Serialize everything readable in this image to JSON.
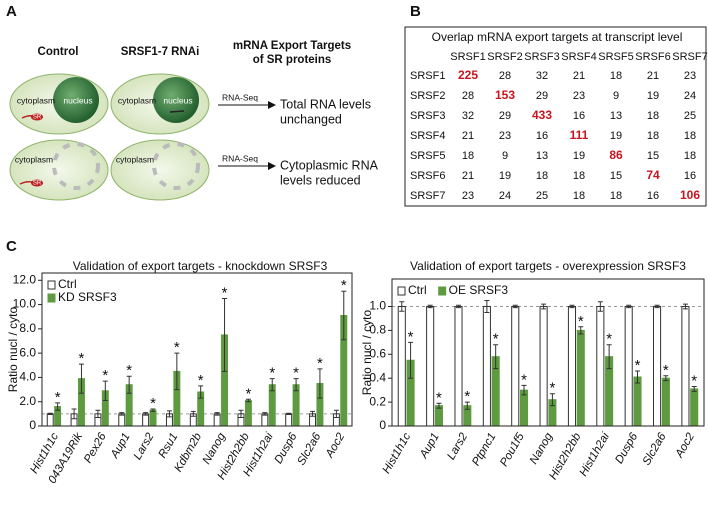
{
  "panel_labels": [
    "A",
    "B",
    "C"
  ],
  "diagram": {
    "headers": [
      "Control",
      "SRSF1-7 RNAi"
    ],
    "result_header": [
      "mRNA Export Targets",
      "of SR proteins"
    ],
    "cytoplasm": "cytoplasm",
    "nucleus": "nucleus",
    "sr": "SR",
    "method": "RNA-Seq",
    "outcomes": [
      [
        "Total RNA levels",
        "unchanged"
      ],
      [
        "Cytoplasmic RNA",
        "levels reduced"
      ]
    ]
  },
  "table": {
    "title": "Overlap mRNA export targets at transcript level",
    "columns": [
      "SRSF1",
      "SRSF2",
      "SRSF3",
      "SRSF4",
      "SRSF5",
      "SRSF6",
      "SRSF7"
    ],
    "rows": [
      {
        "label": "SRSF1",
        "cells": [
          225,
          28,
          32,
          21,
          18,
          21,
          23
        ]
      },
      {
        "label": "SRSF2",
        "cells": [
          28,
          153,
          29,
          23,
          9,
          19,
          24
        ]
      },
      {
        "label": "SRSF3",
        "cells": [
          32,
          29,
          433,
          16,
          13,
          18,
          25
        ]
      },
      {
        "label": "SRSF4",
        "cells": [
          21,
          23,
          16,
          111,
          19,
          18,
          18
        ]
      },
      {
        "label": "SRSF5",
        "cells": [
          18,
          9,
          13,
          19,
          86,
          15,
          18
        ]
      },
      {
        "label": "SRSF6",
        "cells": [
          21,
          19,
          18,
          18,
          15,
          74,
          16
        ]
      },
      {
        "label": "SRSF7",
        "cells": [
          23,
          24,
          25,
          18,
          18,
          16,
          106
        ]
      }
    ]
  },
  "chart_data": [
    {
      "type": "bar",
      "title": "Validation of export targets - knockdown SRSF3",
      "y_label": "Ratio nucl / cyto",
      "categories": [
        "Hist1h1c",
        "043A19Rik",
        "Pex26",
        "Aup1",
        "Lars2",
        "Rsu1",
        "Kdbm2b",
        "Nanog",
        "Hist2h2bb",
        "Hist1h2ai",
        "Dusp6",
        "Slc2a6",
        "Aoc2"
      ],
      "series": [
        {
          "name": "Ctrl",
          "color": "#ffffff",
          "values": [
            1,
            1,
            1,
            1,
            1,
            1,
            1,
            1,
            1,
            1,
            1,
            1,
            1
          ],
          "errors": [
            0.05,
            0.4,
            0.3,
            0.1,
            0.1,
            0.25,
            0.2,
            0.1,
            0.3,
            0.1,
            0.05,
            0.2,
            0.3
          ]
        },
        {
          "name": "KD SRSF3",
          "color": "#5e9a40",
          "values": [
            1.6,
            3.9,
            2.9,
            3.4,
            1.3,
            4.5,
            2.8,
            7.5,
            2.1,
            3.4,
            3.4,
            3.5,
            9.1
          ],
          "errors": [
            0.3,
            1.2,
            0.8,
            0.7,
            0.1,
            1.5,
            0.5,
            3.0,
            0.1,
            0.5,
            0.5,
            1.2,
            2.0
          ],
          "annotation": "*"
        }
      ],
      "ylim": [
        0,
        12.6
      ],
      "yticks": [
        0,
        {
          "value": 2,
          "label": "2.0"
        },
        {
          "value": 4,
          "label": "4.0"
        },
        {
          "value": 6,
          "label": "6.0"
        },
        {
          "value": 8,
          "label": "8.0"
        },
        {
          "value": 10,
          "label": "10.0"
        },
        {
          "value": 12,
          "label": "12.0"
        }
      ],
      "reference_line": 1,
      "legend": "top-left",
      "legend_direction": "vertical"
    },
    {
      "type": "bar",
      "title": "Validation of export targets - overexpression SRSF3",
      "y_label": "Ratio nucl / cyto",
      "categories": [
        "Hist1h1c",
        "Aup1",
        "Lars2",
        "Ptpnc1",
        "Pou1f5",
        "Nanog",
        "Hist2h2bb",
        "Hist1h2ai",
        "Dusp6",
        "Slc2a6",
        "Aoc2"
      ],
      "series": [
        {
          "name": "Ctrl",
          "color": "#ffffff",
          "values": [
            1,
            1,
            1,
            1,
            1,
            1,
            1,
            1,
            1,
            1,
            1
          ],
          "errors": [
            0.04,
            0.01,
            0.01,
            0.05,
            0.01,
            0.02,
            0.01,
            0.04,
            0.01,
            0.01,
            0.02
          ]
        },
        {
          "name": "OE SRSF3",
          "color": "#5e9a40",
          "values": [
            0.55,
            0.17,
            0.17,
            0.58,
            0.3,
            0.22,
            0.8,
            0.58,
            0.41,
            0.4,
            0.31
          ],
          "errors": [
            0.15,
            0.02,
            0.03,
            0.1,
            0.04,
            0.05,
            0.03,
            0.1,
            0.05,
            0.02,
            0.02
          ],
          "annotation": "*"
        }
      ],
      "ylim": [
        0,
        1.23
      ],
      "yticks": [
        0,
        0.2,
        0.4,
        0.6,
        0.8,
        {
          "value": 1,
          "label": "1.0"
        }
      ],
      "reference_line": 1,
      "legend": "top-left",
      "legend_direction": "horizontal"
    }
  ]
}
